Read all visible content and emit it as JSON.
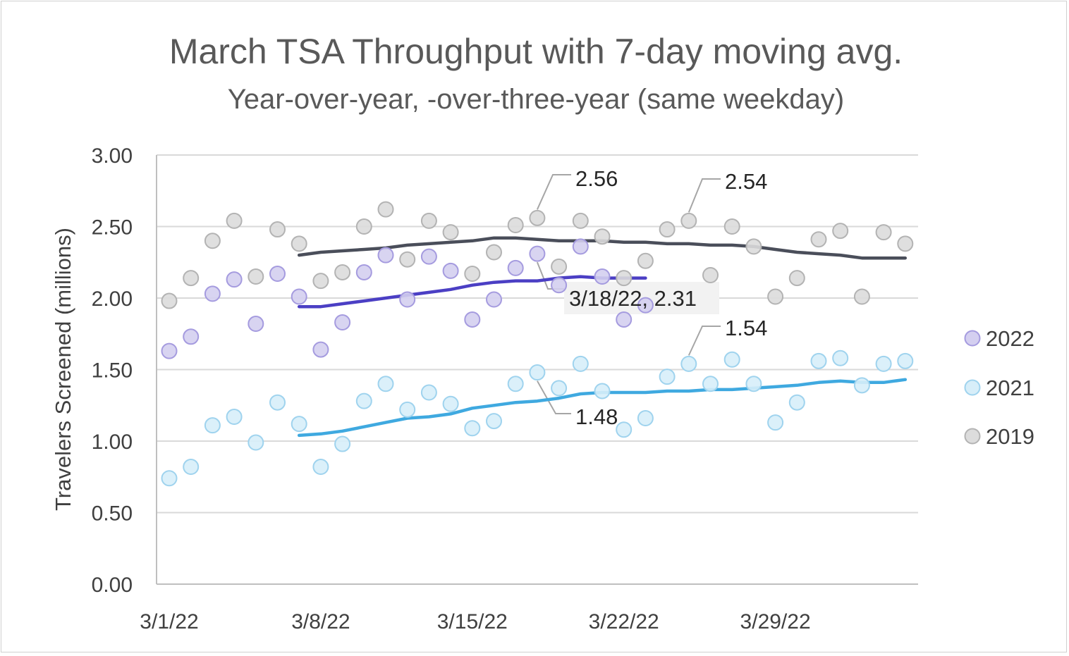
{
  "chart_data": {
    "type": "scatter",
    "title": "March TSA Throughput with 7-day moving avg.",
    "subtitle": "Year-over-year, -over-three-year (same weekday)",
    "ylabel": "Travelers Screened (millions)",
    "xlabel": "",
    "ylim": [
      0,
      3.0
    ],
    "yticks": [
      "0.00",
      "0.50",
      "1.00",
      "1.50",
      "2.00",
      "2.50",
      "3.00"
    ],
    "xticks": [
      "3/1/22",
      "3/8/22",
      "3/15/22",
      "3/22/22",
      "3/29/22"
    ],
    "x_start": "2022-03-01",
    "grid": true,
    "legend_position": "right",
    "series": [
      {
        "name": "2022",
        "color": "#4b3fc4",
        "marker_fill": "#d4cff0",
        "marker_stroke": "#a59bdf",
        "dates": [
          "2022-03-01",
          "2022-03-02",
          "2022-03-03",
          "2022-03-04",
          "2022-03-05",
          "2022-03-06",
          "2022-03-07",
          "2022-03-08",
          "2022-03-09",
          "2022-03-10",
          "2022-03-11",
          "2022-03-12",
          "2022-03-13",
          "2022-03-14",
          "2022-03-15",
          "2022-03-16",
          "2022-03-17",
          "2022-03-18",
          "2022-03-19",
          "2022-03-20",
          "2022-03-21",
          "2022-03-22",
          "2022-03-23"
        ],
        "values": [
          1.63,
          1.73,
          2.03,
          2.13,
          1.82,
          2.17,
          2.01,
          1.64,
          1.83,
          2.18,
          2.3,
          1.99,
          2.29,
          2.19,
          1.85,
          1.99,
          2.21,
          2.31,
          2.09,
          2.36,
          2.15,
          1.85,
          1.95
        ],
        "moving_avg_dates": [
          "2022-03-07",
          "2022-03-08",
          "2022-03-09",
          "2022-03-10",
          "2022-03-11",
          "2022-03-12",
          "2022-03-13",
          "2022-03-14",
          "2022-03-15",
          "2022-03-16",
          "2022-03-17",
          "2022-03-18",
          "2022-03-19",
          "2022-03-20",
          "2022-03-21",
          "2022-03-22",
          "2022-03-23"
        ],
        "moving_avg": [
          1.94,
          1.94,
          1.96,
          1.98,
          2.0,
          2.02,
          2.04,
          2.06,
          2.09,
          2.11,
          2.12,
          2.12,
          2.14,
          2.15,
          2.14,
          2.14,
          2.14
        ]
      },
      {
        "name": "2021",
        "color": "#3fa9e0",
        "marker_fill": "#d7eef9",
        "marker_stroke": "#9fd3ee",
        "dates": [
          "2022-03-01",
          "2022-03-02",
          "2022-03-03",
          "2022-03-04",
          "2022-03-05",
          "2022-03-06",
          "2022-03-07",
          "2022-03-08",
          "2022-03-09",
          "2022-03-10",
          "2022-03-11",
          "2022-03-12",
          "2022-03-13",
          "2022-03-14",
          "2022-03-15",
          "2022-03-16",
          "2022-03-17",
          "2022-03-18",
          "2022-03-19",
          "2022-03-20",
          "2022-03-21",
          "2022-03-22",
          "2022-03-23",
          "2022-03-24",
          "2022-03-25",
          "2022-03-26",
          "2022-03-27",
          "2022-03-28",
          "2022-03-29",
          "2022-03-30",
          "2022-03-31",
          "2022-04-01",
          "2022-04-02",
          "2022-04-03",
          "2022-04-04"
        ],
        "values": [
          0.74,
          0.82,
          1.11,
          1.17,
          0.99,
          1.27,
          1.12,
          0.82,
          0.98,
          1.28,
          1.4,
          1.22,
          1.34,
          1.26,
          1.09,
          1.14,
          1.4,
          1.48,
          1.37,
          1.54,
          1.35,
          1.08,
          1.16,
          1.45,
          1.54,
          1.4,
          1.57,
          1.4,
          1.13,
          1.27,
          1.56,
          1.58,
          1.39,
          1.54,
          1.56
        ],
        "moving_avg_dates": [
          "2022-03-07",
          "2022-03-08",
          "2022-03-09",
          "2022-03-10",
          "2022-03-11",
          "2022-03-12",
          "2022-03-13",
          "2022-03-14",
          "2022-03-15",
          "2022-03-16",
          "2022-03-17",
          "2022-03-18",
          "2022-03-19",
          "2022-03-20",
          "2022-03-21",
          "2022-03-22",
          "2022-03-23",
          "2022-03-24",
          "2022-03-25",
          "2022-03-26",
          "2022-03-27",
          "2022-03-28",
          "2022-03-29",
          "2022-03-30",
          "2022-03-31",
          "2022-04-01",
          "2022-04-02",
          "2022-04-03",
          "2022-04-04"
        ],
        "moving_avg": [
          1.04,
          1.05,
          1.07,
          1.1,
          1.13,
          1.16,
          1.17,
          1.19,
          1.23,
          1.25,
          1.27,
          1.28,
          1.3,
          1.33,
          1.34,
          1.34,
          1.34,
          1.35,
          1.35,
          1.36,
          1.36,
          1.37,
          1.38,
          1.39,
          1.41,
          1.42,
          1.41,
          1.41,
          1.43
        ]
      },
      {
        "name": "2019",
        "color": "#4a4e5a",
        "marker_fill": "#dcdcdc",
        "marker_stroke": "#b3b3b3",
        "dates": [
          "2022-03-01",
          "2022-03-02",
          "2022-03-03",
          "2022-03-04",
          "2022-03-05",
          "2022-03-06",
          "2022-03-07",
          "2022-03-08",
          "2022-03-09",
          "2022-03-10",
          "2022-03-11",
          "2022-03-12",
          "2022-03-13",
          "2022-03-14",
          "2022-03-15",
          "2022-03-16",
          "2022-03-17",
          "2022-03-18",
          "2022-03-19",
          "2022-03-20",
          "2022-03-21",
          "2022-03-22",
          "2022-03-23",
          "2022-03-24",
          "2022-03-25",
          "2022-03-26",
          "2022-03-27",
          "2022-03-28",
          "2022-03-29",
          "2022-03-30",
          "2022-03-31",
          "2022-04-01",
          "2022-04-02",
          "2022-04-03",
          "2022-04-04"
        ],
        "values": [
          1.98,
          2.14,
          2.4,
          2.54,
          2.15,
          2.48,
          2.38,
          2.12,
          2.18,
          2.5,
          2.62,
          2.27,
          2.54,
          2.46,
          2.17,
          2.32,
          2.51,
          2.56,
          2.22,
          2.54,
          2.43,
          2.14,
          2.26,
          2.48,
          2.54,
          2.16,
          2.5,
          2.36,
          2.01,
          2.14,
          2.41,
          2.47,
          2.01,
          2.46,
          2.38
        ],
        "moving_avg_dates": [
          "2022-03-07",
          "2022-03-08",
          "2022-03-09",
          "2022-03-10",
          "2022-03-11",
          "2022-03-12",
          "2022-03-13",
          "2022-03-14",
          "2022-03-15",
          "2022-03-16",
          "2022-03-17",
          "2022-03-18",
          "2022-03-19",
          "2022-03-20",
          "2022-03-21",
          "2022-03-22",
          "2022-03-23",
          "2022-03-24",
          "2022-03-25",
          "2022-03-26",
          "2022-03-27",
          "2022-03-28",
          "2022-03-29",
          "2022-03-30",
          "2022-03-31",
          "2022-04-01",
          "2022-04-02",
          "2022-04-03",
          "2022-04-04"
        ],
        "moving_avg": [
          2.3,
          2.32,
          2.33,
          2.34,
          2.35,
          2.37,
          2.38,
          2.39,
          2.4,
          2.42,
          2.42,
          2.41,
          2.4,
          2.4,
          2.4,
          2.39,
          2.39,
          2.38,
          2.38,
          2.37,
          2.37,
          2.36,
          2.34,
          2.32,
          2.31,
          2.3,
          2.28,
          2.28,
          2.28
        ]
      }
    ],
    "annotations": [
      {
        "text": "2.56",
        "series": "2019",
        "date": "2022-03-18",
        "value": 2.56,
        "boxed": false
      },
      {
        "text": "2.54",
        "series": "2019",
        "date": "2022-03-25",
        "value": 2.54,
        "boxed": false
      },
      {
        "text": "3/18/22, 2.31",
        "series": "2022",
        "date": "2022-03-18",
        "value": 2.31,
        "boxed": true
      },
      {
        "text": "1.54",
        "series": "2021",
        "date": "2022-03-25",
        "value": 1.54,
        "boxed": false
      },
      {
        "text": "1.48",
        "series": "2021",
        "date": "2022-03-18",
        "value": 1.48,
        "boxed": false
      }
    ]
  }
}
